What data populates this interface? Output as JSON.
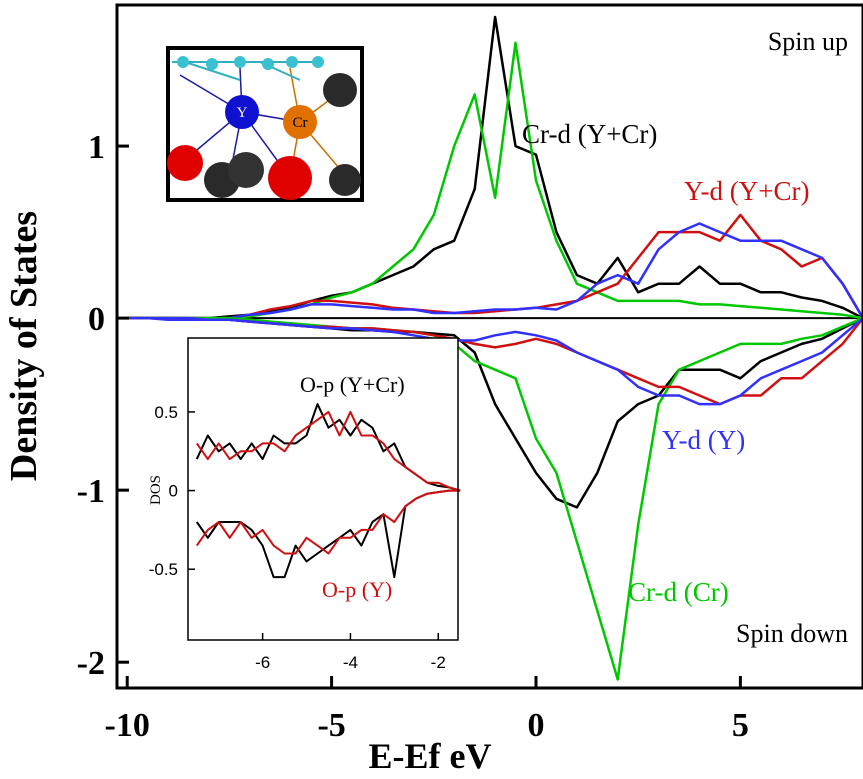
{
  "chart_data": [
    {
      "type": "line",
      "xlabel": "E-Ef eV",
      "ylabel": "Density of States",
      "xlim": [
        -10.25,
        8
      ],
      "xticks": [
        -10,
        -5,
        0,
        5
      ],
      "ylim": [
        -2.15,
        1.82
      ],
      "yticks": [
        -2,
        -1,
        0,
        1
      ],
      "annotations": [
        "Spin up",
        "Spin down"
      ],
      "x": [
        -10,
        -9.5,
        -9,
        -8.5,
        -8,
        -7.5,
        -7,
        -6.5,
        -6,
        -5.5,
        -5,
        -4.5,
        -4,
        -3.5,
        -3,
        -2.5,
        -2,
        -1.5,
        -1,
        -0.5,
        0,
        0.5,
        1,
        1.5,
        2,
        2.5,
        3,
        3.5,
        4,
        4.5,
        5,
        5.5,
        6,
        6.5,
        7,
        7.5,
        8
      ],
      "series": [
        {
          "name": "Cr-d (Y+Cr)",
          "color": "#000000",
          "values": [
            0,
            0,
            0,
            0,
            0,
            0.01,
            0.02,
            0.04,
            0.06,
            0.1,
            0.13,
            0.15,
            0.2,
            0.25,
            0.3,
            0.4,
            0.45,
            0.75,
            1.75,
            1.0,
            0.95,
            0.5,
            0.25,
            0.2,
            0.35,
            0.15,
            0.2,
            0.2,
            0.3,
            0.2,
            0.2,
            0.15,
            0.15,
            0.12,
            0.1,
            0.06,
            0
          ]
        },
        {
          "color": "#00c800",
          "values": [
            0,
            0,
            0,
            0,
            0,
            0,
            0.01,
            0.03,
            0.05,
            0.08,
            0.12,
            0.15,
            0.2,
            0.3,
            0.4,
            0.6,
            1.0,
            1.3,
            0.7,
            1.6,
            0.8,
            0.45,
            0.2,
            0.15,
            0.1,
            0.1,
            0.1,
            0.1,
            0.08,
            0.08,
            0.07,
            0.06,
            0.05,
            0.04,
            0.03,
            0.02,
            0
          ]
        },
        {
          "name": "Y-d (Y+Cr)",
          "color": "#d01010",
          "values": [
            0,
            0,
            0,
            -0.01,
            -0.01,
            0,
            0.02,
            0.05,
            0.07,
            0.1,
            0.1,
            0.09,
            0.08,
            0.06,
            0.05,
            0.04,
            0.03,
            0.03,
            0.04,
            0.05,
            0.06,
            0.08,
            0.1,
            0.15,
            0.2,
            0.35,
            0.5,
            0.5,
            0.5,
            0.45,
            0.6,
            0.45,
            0.4,
            0.3,
            0.35,
            0.2,
            0
          ]
        },
        {
          "color": "#3030ff",
          "values": [
            0,
            0,
            -0.01,
            -0.01,
            -0.01,
            0,
            0.02,
            0.03,
            0.05,
            0.08,
            0.08,
            0.07,
            0.06,
            0.05,
            0.05,
            0.03,
            0.03,
            0.04,
            0.05,
            0.05,
            0.06,
            0.05,
            0.1,
            0.2,
            0.25,
            0.2,
            0.4,
            0.5,
            0.55,
            0.5,
            0.45,
            0.45,
            0.45,
            0.4,
            0.35,
            0.2,
            0
          ]
        },
        {
          "color": "#000000",
          "values": [
            0,
            0,
            0,
            0,
            0,
            -0.01,
            -0.02,
            -0.03,
            -0.04,
            -0.05,
            -0.06,
            -0.07,
            -0.07,
            -0.08,
            -0.08,
            -0.09,
            -0.1,
            -0.2,
            -0.5,
            -0.7,
            -0.9,
            -1.05,
            -1.1,
            -0.9,
            -0.6,
            -0.5,
            -0.45,
            -0.3,
            -0.3,
            -0.3,
            -0.35,
            -0.25,
            -0.2,
            -0.15,
            -0.12,
            -0.06,
            0
          ]
        },
        {
          "name": "Cr-d (Cr)",
          "color": "#00c800",
          "values": [
            0,
            0,
            0,
            0,
            0,
            0,
            -0.01,
            -0.02,
            -0.03,
            -0.04,
            -0.05,
            -0.06,
            -0.06,
            -0.07,
            -0.08,
            -0.1,
            -0.15,
            -0.25,
            -0.3,
            -0.35,
            -0.7,
            -0.9,
            -1.3,
            -1.7,
            -2.1,
            -1.2,
            -0.5,
            -0.3,
            -0.25,
            -0.2,
            -0.15,
            -0.15,
            -0.15,
            -0.12,
            -0.1,
            -0.05,
            0
          ]
        },
        {
          "color": "#d01010",
          "values": [
            0,
            0,
            0,
            0,
            -0.01,
            -0.01,
            -0.02,
            -0.03,
            -0.04,
            -0.05,
            -0.05,
            -0.06,
            -0.06,
            -0.07,
            -0.08,
            -0.1,
            -0.12,
            -0.15,
            -0.17,
            -0.15,
            -0.12,
            -0.15,
            -0.2,
            -0.25,
            -0.3,
            -0.35,
            -0.4,
            -0.4,
            -0.45,
            -0.5,
            -0.45,
            -0.45,
            -0.35,
            -0.35,
            -0.25,
            -0.15,
            0
          ]
        },
        {
          "name": "Y-d (Y)",
          "color": "#3030ff",
          "values": [
            0,
            0,
            0,
            0,
            -0.01,
            -0.01,
            -0.02,
            -0.03,
            -0.04,
            -0.05,
            -0.06,
            -0.06,
            -0.07,
            -0.08,
            -0.1,
            -0.12,
            -0.13,
            -0.13,
            -0.1,
            -0.08,
            -0.1,
            -0.13,
            -0.2,
            -0.25,
            -0.3,
            -0.4,
            -0.45,
            -0.45,
            -0.5,
            -0.5,
            -0.45,
            -0.35,
            -0.3,
            -0.25,
            -0.2,
            -0.1,
            0
          ]
        }
      ]
    },
    {
      "type": "line",
      "ylabel": "DOS",
      "xlim": [
        -7.7,
        -1.55
      ],
      "xticks": [
        -6,
        -4,
        -2
      ],
      "ylim": [
        -0.95,
        0.97
      ],
      "yticks": [
        0.5,
        0,
        -0.5
      ],
      "x": [
        -7.5,
        -7.25,
        -7,
        -6.75,
        -6.5,
        -6.25,
        -6,
        -5.75,
        -5.5,
        -5.25,
        -5,
        -4.75,
        -4.5,
        -4.25,
        -4,
        -3.75,
        -3.5,
        -3.25,
        -3,
        -2.75,
        -2.5,
        -2.25,
        -2,
        -1.75,
        -1.5
      ],
      "series": [
        {
          "name": "O-p (Y+Cr)",
          "color": "#000000",
          "values": [
            0.2,
            0.35,
            0.25,
            0.3,
            0.2,
            0.3,
            0.2,
            0.35,
            0.3,
            0.3,
            0.35,
            0.55,
            0.4,
            0.45,
            0.35,
            0.45,
            0.4,
            0.25,
            0.3,
            0.15,
            0.1,
            0.05,
            0.03,
            0.02,
            0
          ]
        },
        {
          "color": "#d01010",
          "values": [
            0.3,
            0.2,
            0.3,
            0.2,
            0.25,
            0.25,
            0.3,
            0.3,
            0.25,
            0.35,
            0.4,
            0.45,
            0.5,
            0.35,
            0.5,
            0.35,
            0.35,
            0.3,
            0.2,
            0.15,
            0.1,
            0.05,
            0.05,
            0.02,
            0
          ]
        },
        {
          "color": "#000000",
          "values": [
            -0.2,
            -0.3,
            -0.2,
            -0.2,
            -0.2,
            -0.25,
            -0.35,
            -0.55,
            -0.55,
            -0.35,
            -0.45,
            -0.4,
            -0.35,
            -0.3,
            -0.25,
            -0.35,
            -0.2,
            -0.15,
            -0.55,
            -0.1,
            -0.05,
            -0.02,
            -0.01,
            0,
            0
          ]
        },
        {
          "name": "O-p (Y)",
          "color": "#d01010",
          "values": [
            -0.35,
            -0.25,
            -0.2,
            -0.3,
            -0.2,
            -0.3,
            -0.25,
            -0.35,
            -0.4,
            -0.4,
            -0.3,
            -0.35,
            -0.4,
            -0.3,
            -0.3,
            -0.25,
            -0.25,
            -0.15,
            -0.2,
            -0.1,
            -0.05,
            -0.02,
            -0.01,
            0,
            0
          ]
        }
      ]
    }
  ],
  "structure_labels": [
    "Y",
    "Cr"
  ]
}
